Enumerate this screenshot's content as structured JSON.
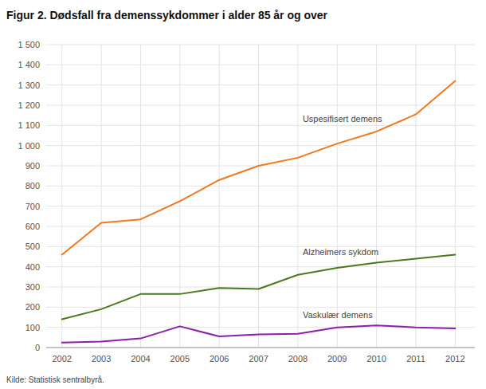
{
  "chart_data": {
    "type": "line",
    "title": "Figur 2. Dødsfall fra demenssykdommer i alder 85 år og over",
    "source": "Kilde: Statistisk sentralbyrå.",
    "x": [
      2002,
      2003,
      2004,
      2005,
      2006,
      2007,
      2008,
      2009,
      2010,
      2011,
      2012
    ],
    "series": [
      {
        "name": "Uspesifisert demens",
        "color": "#F07820",
        "values": [
          460,
          618,
          635,
          725,
          830,
          900,
          940,
          1010,
          1070,
          1155,
          1320
        ]
      },
      {
        "name": "Alzheimers sykdom",
        "color": "#4a7a1e",
        "values": [
          140,
          190,
          265,
          265,
          295,
          290,
          360,
          395,
          420,
          440,
          460
        ]
      },
      {
        "name": "Vaskulær demens",
        "color": "#8B1FA8",
        "values": [
          25,
          30,
          45,
          105,
          55,
          65,
          68,
          100,
          110,
          100,
          95
        ]
      }
    ],
    "xlim": [
      2001.6,
      2012.5
    ],
    "xticks": [
      2002,
      2003,
      2004,
      2005,
      2006,
      2007,
      2008,
      2009,
      2010,
      2011,
      2012
    ],
    "ylim": [
      0,
      1500
    ],
    "yticks": [
      0,
      100,
      200,
      300,
      400,
      500,
      600,
      700,
      800,
      900,
      {
        "value": 1000,
        "label": "1 000"
      },
      {
        "value": 1100,
        "label": "1 100"
      },
      {
        "value": 1200,
        "label": "1 200"
      },
      {
        "value": 1300,
        "label": "1 300"
      },
      {
        "value": 1400,
        "label": "1 400"
      },
      {
        "value": 1500,
        "label": "1 500"
      }
    ],
    "grid": true
  }
}
